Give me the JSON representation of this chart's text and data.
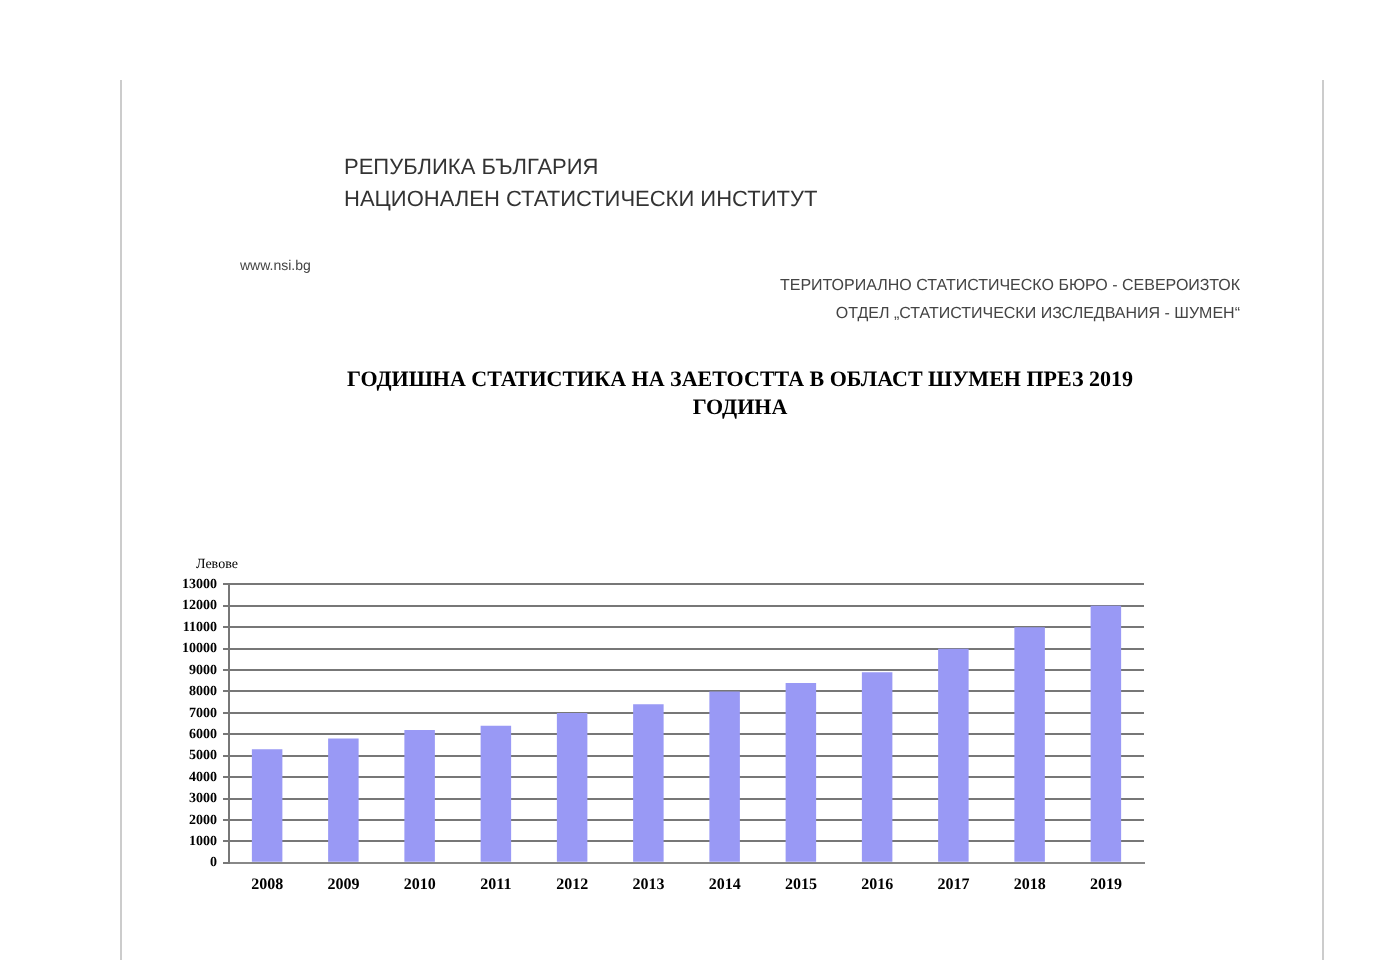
{
  "chart_data": {
    "type": "bar",
    "title": "ГОДИШНА СТАТИСТИКА НА ЗАЕТОСТТА В ОБЛАСТ ШУМЕН ПРЕЗ 2019 ГОДИНА",
    "annotations": [
      "РЕПУБЛИКА БЪЛГАРИЯ",
      "НАЦИОНАЛЕН СТАТИСТИЧЕСКИ ИНСТИТУТ",
      "www.nsi.bg",
      "ТЕРИТОРИАЛНО СТАТИСТИЧЕСКО БЮРО - СЕВЕРОИЗТОК",
      "ОТДЕЛ „СТАТИСТИЧЕСКИ ИЗСЛЕДВАНИЯ - ШУМЕН“"
    ],
    "ylabel": "Левове",
    "categories": [
      "2008",
      "2009",
      "2010",
      "2011",
      "2012",
      "2013",
      "2014",
      "2015",
      "2016",
      "2017",
      "2018",
      "2019"
    ],
    "values": [
      5300,
      5800,
      6200,
      6400,
      7000,
      7400,
      8000,
      8400,
      8900,
      10000,
      11000,
      12000
    ],
    "color": "#9999f5",
    "ylim": [
      0,
      13000
    ],
    "yticks": [
      0,
      1000,
      2000,
      3000,
      4000,
      5000,
      6000,
      7000,
      8000,
      9000,
      10000,
      11000,
      12000,
      13000
    ],
    "grid": "y",
    "legend": false
  }
}
